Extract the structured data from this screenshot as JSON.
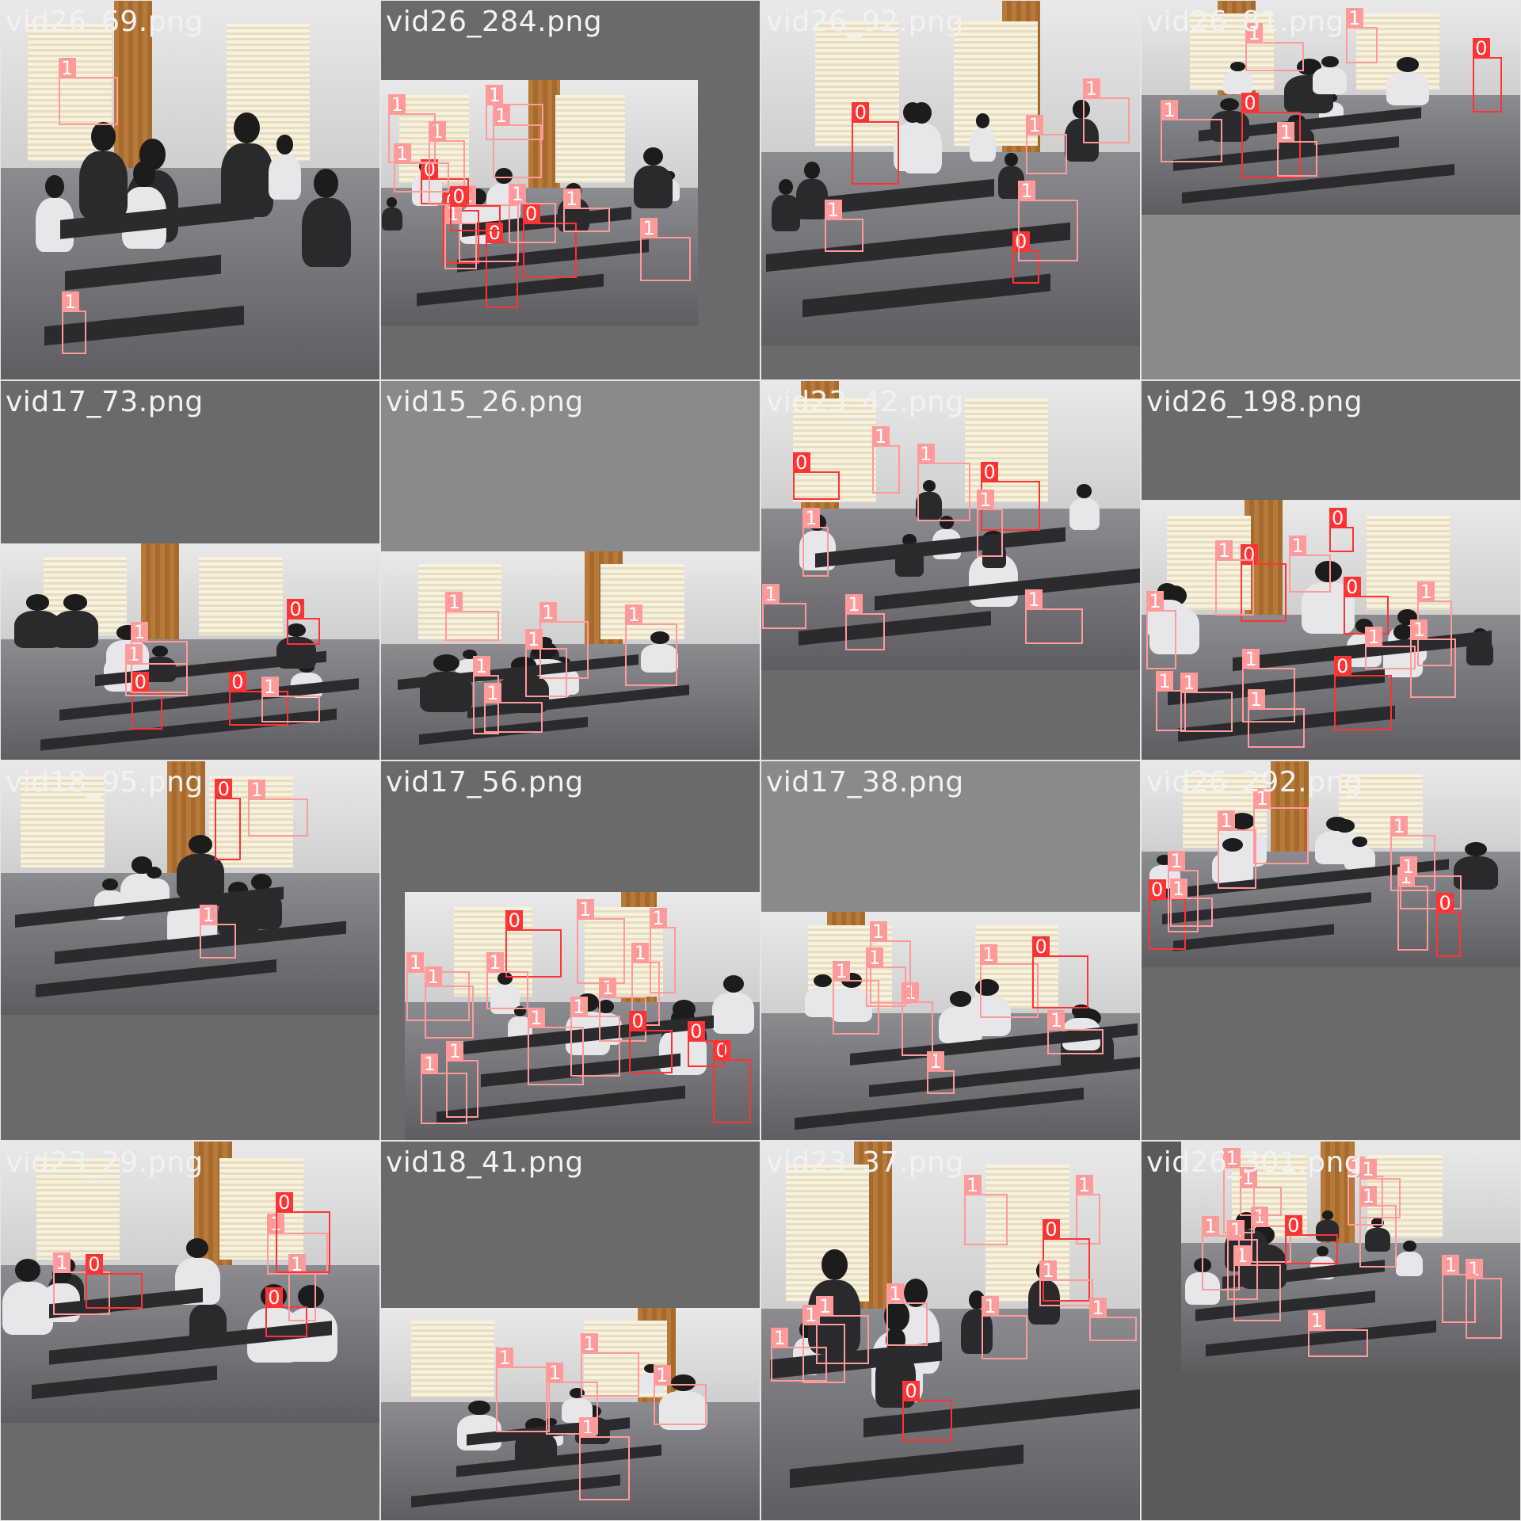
{
  "mosaic": {
    "tiles": [
      {
        "label": "vid26_69.png",
        "tags": [
          "1",
          "1"
        ],
        "bg": "#6a6a6a"
      },
      {
        "label": "vid26_284.png",
        "tags": [
          "0",
          "1",
          "1",
          "0",
          "1",
          "0",
          "0",
          "1",
          "1",
          "1",
          "1",
          "1",
          "0",
          "1",
          "1"
        ],
        "bg": "#6a6a6a"
      },
      {
        "label": "vid26_92.png",
        "tags": [
          "0",
          "1",
          "1",
          "0",
          "1",
          "1"
        ],
        "bg": "#6a6a6a"
      },
      {
        "label": "vid26_81.png",
        "tags": [
          "1",
          "1",
          "0",
          "1",
          "0",
          "1"
        ],
        "bg": "#8a8a8a"
      },
      {
        "label": "vid17_73.png",
        "tags": [
          "0",
          "1",
          "0",
          "1",
          "1",
          "0"
        ],
        "bg": "#6a6a6a"
      },
      {
        "label": "vid15_26.png",
        "tags": [
          "1",
          "1",
          "1",
          "1",
          "1",
          "1"
        ],
        "bg": "#8a8a8a"
      },
      {
        "label": "vid23_42.png",
        "tags": [
          "1",
          "1",
          "1",
          "0",
          "1",
          "0",
          "1",
          "1",
          "1"
        ],
        "bg": "#6a6a6a"
      },
      {
        "label": "vid26_198.png",
        "tags": [
          "0",
          "1",
          "1",
          "1",
          "1",
          "1",
          "1",
          "1",
          "0",
          "1",
          "0",
          "1",
          "0",
          "1"
        ],
        "bg": "#6a6a6a"
      },
      {
        "label": "vid18_95.png",
        "tags": [
          "1",
          "0",
          "1"
        ],
        "bg": "#6a6a6a"
      },
      {
        "label": "vid17_56.png",
        "tags": [
          "1",
          "1",
          "1",
          "1",
          "0",
          "0",
          "1",
          "0",
          "1",
          "1",
          "1",
          "1",
          "0",
          "1",
          "1"
        ],
        "bg": "#6a6a6a"
      },
      {
        "label": "vid17_38.png",
        "tags": [
          "1",
          "1",
          "1",
          "1",
          "0",
          "1",
          "1",
          "1"
        ],
        "bg": "#8a8a8a"
      },
      {
        "label": "vid26_292.png",
        "tags": [
          "1",
          "0",
          "1",
          "1",
          "1",
          "0",
          "1",
          "1",
          "1"
        ],
        "bg": "#6a6a6a"
      },
      {
        "label": "vid23_29.png",
        "tags": [
          "0",
          "1",
          "1",
          "1",
          "0",
          "0"
        ],
        "bg": "#6a6a6a"
      },
      {
        "label": "vid18_41.png",
        "tags": [
          "1",
          "1",
          "1",
          "1",
          "1"
        ],
        "bg": "#6a6a6a"
      },
      {
        "label": "vid23_37.png",
        "tags": [
          "1",
          "0",
          "1",
          "0",
          "1",
          "1",
          "1",
          "1",
          "1",
          "1",
          "1"
        ],
        "bg": "#6a6a6a"
      },
      {
        "label": "vid26_301.png",
        "tags": [
          "1",
          "1",
          "1",
          "1",
          "0",
          "1",
          "1",
          "1",
          "1",
          "1",
          "1",
          "1",
          "1"
        ],
        "bg": "#5a5a5a"
      }
    ]
  },
  "colors": {
    "class0": "#ff3333",
    "class1": "#ff9a9a",
    "separator": "#e6e6e6"
  }
}
